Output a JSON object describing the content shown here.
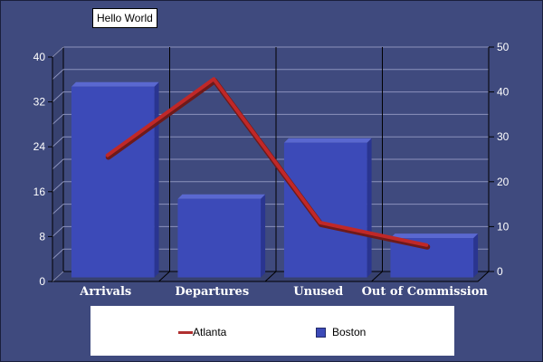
{
  "chart_data": {
    "type": "bar",
    "title": "Hello World",
    "categories": [
      "Arrivals",
      "Departures",
      "Unused",
      "Out of Commission"
    ],
    "series": [
      {
        "name": "Boston",
        "type": "bar",
        "axis": "left",
        "values": [
          34,
          14,
          24,
          7
        ],
        "color": "#3c4ab8"
      },
      {
        "name": "Atlanta",
        "type": "line",
        "axis": "right",
        "values": [
          27,
          44,
          12,
          7
        ],
        "color": "#c02828"
      }
    ],
    "y_left": {
      "ylim": [
        0,
        40
      ],
      "ticks": [
        0,
        8,
        16,
        24,
        32,
        40
      ]
    },
    "y_right": {
      "ylim": [
        0,
        50
      ],
      "ticks": [
        0,
        10,
        20,
        30,
        40,
        50
      ]
    },
    "grid": true,
    "legend_position": "bottom"
  },
  "colors": {
    "background": "#3f4a7e",
    "bar_front": "#3c4ab8",
    "bar_side": "#2a3590",
    "bar_top": "#5a68d0",
    "line": "#c02828",
    "grid": "#8c92bc"
  }
}
